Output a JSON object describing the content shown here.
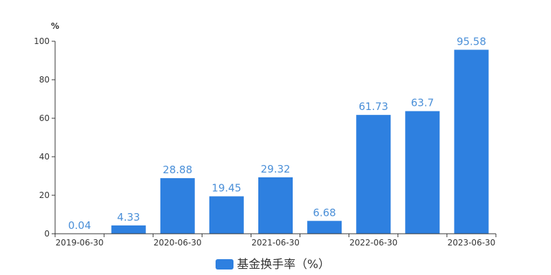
{
  "chart_data": {
    "type": "bar",
    "categories": [
      "2019-06-30",
      "",
      "2020-06-30",
      "",
      "2021-06-30",
      "",
      "2022-06-30",
      "",
      "2023-06-30"
    ],
    "series": [
      {
        "name": "基金换手率（%）",
        "values": [
          0.04,
          4.33,
          28.88,
          19.45,
          29.32,
          6.68,
          61.73,
          63.7,
          95.58
        ],
        "labels": [
          "0.04",
          "4.33",
          "28.88",
          "19.45",
          "29.32",
          "6.68",
          "61.73",
          "63.7",
          "95.58"
        ]
      }
    ],
    "ylabel": "%",
    "ylim": [
      0,
      100
    ],
    "yticks": [
      "0",
      "20",
      "40",
      "60",
      "80",
      "100"
    ],
    "grid": false,
    "legend_position": "bottom-center",
    "bar_color": "#2e80e0"
  }
}
